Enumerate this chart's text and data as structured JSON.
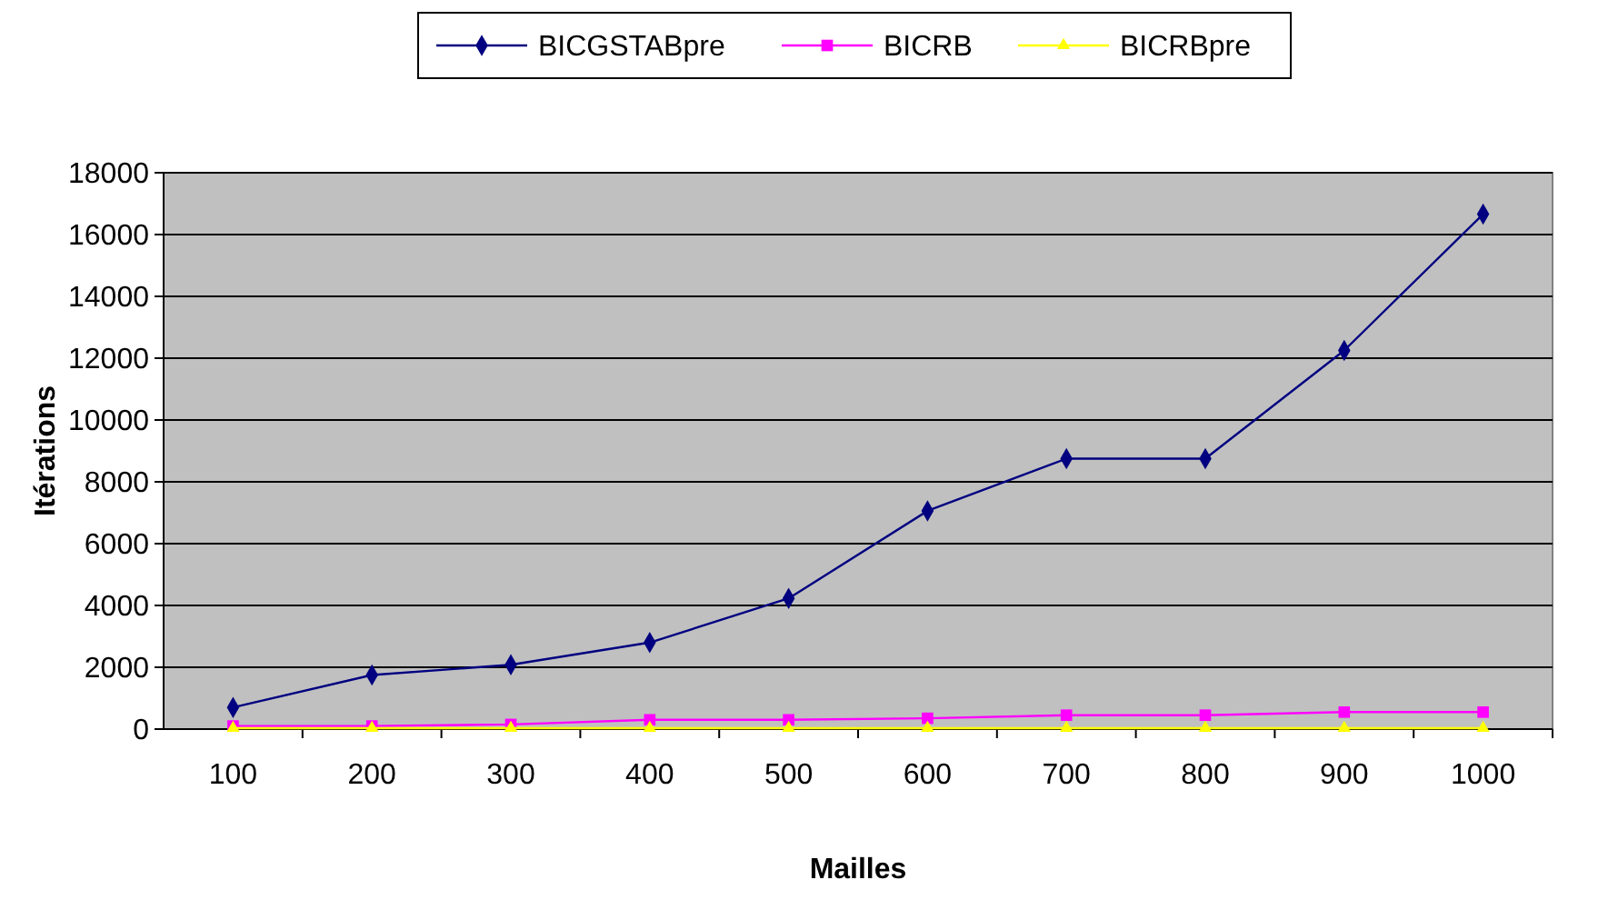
{
  "chart_data": {
    "type": "line",
    "xlabel": "Mailles",
    "ylabel": "Itérations",
    "categories": [
      "100",
      "200",
      "300",
      "400",
      "500",
      "600",
      "700",
      "800",
      "900",
      "1000"
    ],
    "series": [
      {
        "name": "BICGSTABpre",
        "color": "#000080",
        "marker": "diamond",
        "values": [
          700,
          1750,
          2080,
          2800,
          4230,
          7060,
          8750,
          8750,
          12250,
          16660
        ]
      },
      {
        "name": "BICRB",
        "color": "#ff00ff",
        "marker": "square",
        "values": [
          100,
          100,
          150,
          300,
          300,
          350,
          450,
          450,
          550,
          550
        ]
      },
      {
        "name": "BICRBpre",
        "color": "#ffff00",
        "marker": "triangle",
        "values": [
          30,
          30,
          30,
          30,
          30,
          30,
          30,
          30,
          30,
          30
        ]
      }
    ],
    "ylim": [
      0,
      18000
    ],
    "yticks": [
      0,
      2000,
      4000,
      6000,
      8000,
      10000,
      12000,
      14000,
      16000,
      18000
    ],
    "grid": "y",
    "legend": "top"
  }
}
